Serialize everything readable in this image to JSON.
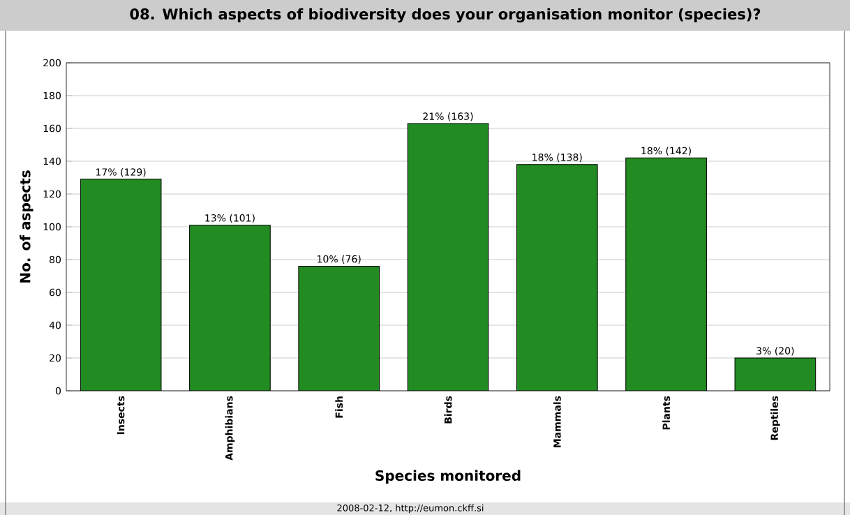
{
  "chart_data": {
    "type": "bar",
    "title": "08. Which aspects of biodiversity does your organisation monitor (species)?",
    "xlabel": "Species monitored",
    "ylabel": "No. of aspects",
    "categories": [
      "Insects",
      "Amphibians",
      "Fish",
      "Birds",
      "Mammals",
      "Plants",
      "Reptiles"
    ],
    "values": [
      129,
      101,
      76,
      163,
      138,
      142,
      20
    ],
    "value_labels": [
      "17% (129)",
      "13% (101)",
      "10% (76)",
      "21% (163)",
      "18% (138)",
      "18% (142)",
      "3% (20)"
    ],
    "color": "#228b22",
    "ylim": [
      0,
      200
    ],
    "yticks": [
      0,
      20,
      40,
      60,
      80,
      100,
      120,
      140,
      160,
      180,
      200
    ],
    "grid": "y",
    "annotations": [
      "2008-02-12,  http://eumon.ckff.si"
    ]
  }
}
